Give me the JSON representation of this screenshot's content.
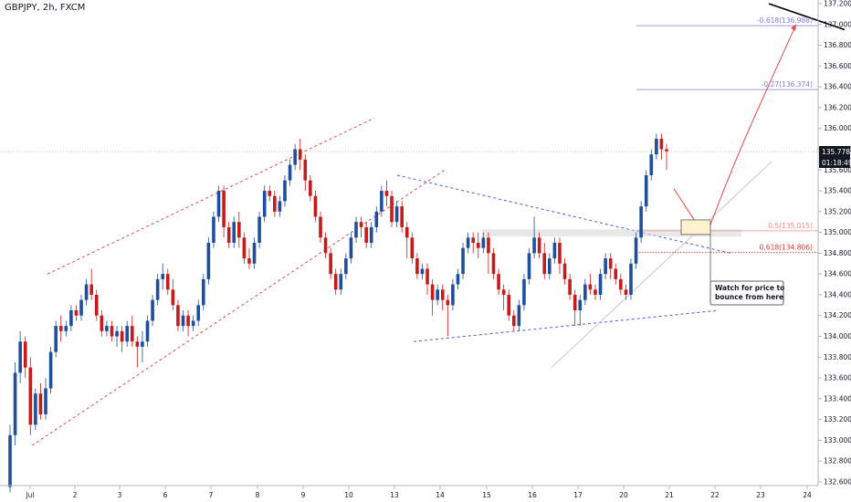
{
  "header": {
    "title": "GBPJPY, 2h, FXCM"
  },
  "chart_data": {
    "type": "candlestick",
    "title": "GBPJPY, 2h, FXCM",
    "ylim": [
      132.6,
      137.2
    ],
    "y_ticks": [
      "137.200",
      "137.000",
      "136.800",
      "136.600",
      "136.400",
      "136.200",
      "136.000",
      "135.800",
      "135.600",
      "135.400",
      "135.200",
      "135.000",
      "134.800",
      "134.600",
      "134.400",
      "134.200",
      "134.000",
      "133.800",
      "133.600",
      "133.400",
      "133.200",
      "133.000",
      "132.800",
      "132.600"
    ],
    "x_ticks": [
      "Jul",
      "2",
      "3",
      "6",
      "7",
      "8",
      "9",
      "10",
      "13",
      "14",
      "15",
      "16",
      "17",
      "20",
      "21",
      "22",
      "23",
      "24"
    ],
    "last_price": "135.778",
    "countdown": "01:18:49",
    "fib_levels": [
      {
        "label": "-0.618(136.988)",
        "value": 136.988,
        "color": "#7e7ed8"
      },
      {
        "label": "-0.27(136.374)",
        "value": 136.374,
        "color": "#7e7ed8"
      },
      {
        "label": "0.5(135.015)",
        "value": 135.015,
        "color": "#f08a8a"
      },
      {
        "label": "0.618(134.806)",
        "value": 134.806,
        "color": "#d93a3a"
      }
    ],
    "annotation": "Watch for price to bounce from here",
    "colors": {
      "up": "#1f4e9c",
      "down": "#c51b1b",
      "channel": "#e04a4a",
      "triangle": "#4a5ae0"
    },
    "candles": [
      [
        132.55,
        133.05,
        132.5,
        133.15
      ],
      [
        133.05,
        133.65,
        132.95,
        133.75
      ],
      [
        133.65,
        133.95,
        133.55,
        134.05
      ],
      [
        133.95,
        133.7,
        133.6,
        134.0
      ],
      [
        133.7,
        133.15,
        133.05,
        133.8
      ],
      [
        133.15,
        133.45,
        133.1,
        133.5
      ],
      [
        133.45,
        133.25,
        133.2,
        133.55
      ],
      [
        133.25,
        133.5,
        133.2,
        133.6
      ],
      [
        133.5,
        133.85,
        133.45,
        133.9
      ],
      [
        133.85,
        134.1,
        133.8,
        134.15
      ],
      [
        134.1,
        134.05,
        133.95,
        134.2
      ],
      [
        134.05,
        134.1,
        134.0,
        134.15
      ],
      [
        134.1,
        134.25,
        134.05,
        134.3
      ],
      [
        134.25,
        134.2,
        134.15,
        134.3
      ],
      [
        134.2,
        134.35,
        134.15,
        134.4
      ],
      [
        134.35,
        134.5,
        134.3,
        134.55
      ],
      [
        134.5,
        134.4,
        134.35,
        134.65
      ],
      [
        134.4,
        134.2,
        134.15,
        134.45
      ],
      [
        134.2,
        134.05,
        134.0,
        134.25
      ],
      [
        134.05,
        134.1,
        134.0,
        134.15
      ],
      [
        134.1,
        134.0,
        133.95,
        134.15
      ],
      [
        134.0,
        134.05,
        133.9,
        134.1
      ],
      [
        134.05,
        133.95,
        133.85,
        134.1
      ],
      [
        133.95,
        134.1,
        133.9,
        134.15
      ],
      [
        134.1,
        133.95,
        133.9,
        134.2
      ],
      [
        133.95,
        133.9,
        133.7,
        134.0
      ],
      [
        133.9,
        133.95,
        133.75,
        134.05
      ],
      [
        133.95,
        134.15,
        133.9,
        134.2
      ],
      [
        134.15,
        134.35,
        134.1,
        134.4
      ],
      [
        134.35,
        134.55,
        134.3,
        134.6
      ],
      [
        134.55,
        134.6,
        134.45,
        134.7
      ],
      [
        134.6,
        134.45,
        134.4,
        134.65
      ],
      [
        134.45,
        134.3,
        134.25,
        134.55
      ],
      [
        134.3,
        134.1,
        134.05,
        134.35
      ],
      [
        134.1,
        134.2,
        134.05,
        134.25
      ],
      [
        134.2,
        134.1,
        134.0,
        134.25
      ],
      [
        134.1,
        134.15,
        134.05,
        134.2
      ],
      [
        134.15,
        134.3,
        134.1,
        134.35
      ],
      [
        134.3,
        134.55,
        134.25,
        134.6
      ],
      [
        134.55,
        134.9,
        134.5,
        134.95
      ],
      [
        134.9,
        135.15,
        134.85,
        135.2
      ],
      [
        135.15,
        135.4,
        135.1,
        135.45
      ],
      [
        135.4,
        135.05,
        134.95,
        135.45
      ],
      [
        135.05,
        134.9,
        134.85,
        135.1
      ],
      [
        134.9,
        135.1,
        134.85,
        135.15
      ],
      [
        135.1,
        134.95,
        134.85,
        135.2
      ],
      [
        134.95,
        134.75,
        134.7,
        135.0
      ],
      [
        134.75,
        134.7,
        134.65,
        134.85
      ],
      [
        134.7,
        134.9,
        134.65,
        134.95
      ],
      [
        134.9,
        135.15,
        134.85,
        135.2
      ],
      [
        135.15,
        135.4,
        135.1,
        135.45
      ],
      [
        135.4,
        135.35,
        135.3,
        135.45
      ],
      [
        135.35,
        135.2,
        135.15,
        135.4
      ],
      [
        135.2,
        135.3,
        135.15,
        135.35
      ],
      [
        135.3,
        135.5,
        135.25,
        135.55
      ],
      [
        135.5,
        135.65,
        135.45,
        135.7
      ],
      [
        135.65,
        135.8,
        135.6,
        135.85
      ],
      [
        135.8,
        135.7,
        135.6,
        135.9
      ],
      [
        135.7,
        135.5,
        135.4,
        135.75
      ],
      [
        135.5,
        135.35,
        135.3,
        135.55
      ],
      [
        135.35,
        135.15,
        135.1,
        135.4
      ],
      [
        135.15,
        134.95,
        134.9,
        135.2
      ],
      [
        134.95,
        134.8,
        134.75,
        135.0
      ],
      [
        134.8,
        134.6,
        134.55,
        134.85
      ],
      [
        134.6,
        134.45,
        134.4,
        134.65
      ],
      [
        134.45,
        134.6,
        134.4,
        134.65
      ],
      [
        134.6,
        134.75,
        134.55,
        134.8
      ],
      [
        134.75,
        134.95,
        134.7,
        135.0
      ],
      [
        134.95,
        135.1,
        134.9,
        135.15
      ],
      [
        135.1,
        135.05,
        134.95,
        135.15
      ],
      [
        135.05,
        134.9,
        134.85,
        135.1
      ],
      [
        134.9,
        135.05,
        134.85,
        135.1
      ],
      [
        135.05,
        135.2,
        135.0,
        135.25
      ],
      [
        135.2,
        135.4,
        135.15,
        135.45
      ],
      [
        135.4,
        135.35,
        135.25,
        135.5
      ],
      [
        135.35,
        135.1,
        135.05,
        135.4
      ],
      [
        135.1,
        135.25,
        135.05,
        135.3
      ],
      [
        135.25,
        135.05,
        135.0,
        135.3
      ],
      [
        135.05,
        134.95,
        134.75,
        135.1
      ],
      [
        134.95,
        134.75,
        134.7,
        135.0
      ],
      [
        134.75,
        134.6,
        134.55,
        134.8
      ],
      [
        134.6,
        134.65,
        134.55,
        134.7
      ],
      [
        134.65,
        134.5,
        134.4,
        134.7
      ],
      [
        134.5,
        134.35,
        134.2,
        134.55
      ],
      [
        134.35,
        134.45,
        134.3,
        134.5
      ],
      [
        134.45,
        134.35,
        134.25,
        134.5
      ],
      [
        134.35,
        134.3,
        134.0,
        134.4
      ],
      [
        134.3,
        134.5,
        134.25,
        134.55
      ],
      [
        134.5,
        134.6,
        134.45,
        134.65
      ],
      [
        134.6,
        134.85,
        134.55,
        134.9
      ],
      [
        134.85,
        134.95,
        134.8,
        135.0
      ],
      [
        134.95,
        134.9,
        134.8,
        135.0
      ],
      [
        134.9,
        134.85,
        134.75,
        135.0
      ],
      [
        134.85,
        134.95,
        134.8,
        135.0
      ],
      [
        134.95,
        134.8,
        134.6,
        135.0
      ],
      [
        134.8,
        134.6,
        134.55,
        134.85
      ],
      [
        134.6,
        134.45,
        134.4,
        134.65
      ],
      [
        134.45,
        134.4,
        134.25,
        134.5
      ],
      [
        134.4,
        134.2,
        134.15,
        134.45
      ],
      [
        134.2,
        134.1,
        134.05,
        134.25
      ],
      [
        134.1,
        134.3,
        134.05,
        134.35
      ],
      [
        134.3,
        134.55,
        134.25,
        134.6
      ],
      [
        134.55,
        134.8,
        134.5,
        134.85
      ],
      [
        134.8,
        134.95,
        134.75,
        135.15
      ],
      [
        134.95,
        134.8,
        134.75,
        135.0
      ],
      [
        134.8,
        134.6,
        134.55,
        134.9
      ],
      [
        134.6,
        134.75,
        134.55,
        134.8
      ],
      [
        134.75,
        134.9,
        134.7,
        134.95
      ],
      [
        134.9,
        134.7,
        134.6,
        134.95
      ],
      [
        134.7,
        134.55,
        134.5,
        134.75
      ],
      [
        134.55,
        134.4,
        134.35,
        134.6
      ],
      [
        134.4,
        134.25,
        134.1,
        134.45
      ],
      [
        134.25,
        134.35,
        134.1,
        134.4
      ],
      [
        134.35,
        134.5,
        134.3,
        134.55
      ],
      [
        134.5,
        134.45,
        134.4,
        134.6
      ],
      [
        134.45,
        134.4,
        134.35,
        134.5
      ],
      [
        134.4,
        134.6,
        134.35,
        134.65
      ],
      [
        134.6,
        134.75,
        134.55,
        134.8
      ],
      [
        134.75,
        134.65,
        134.55,
        134.8
      ],
      [
        134.65,
        134.55,
        134.5,
        134.7
      ],
      [
        134.55,
        134.45,
        134.4,
        134.6
      ],
      [
        134.45,
        134.4,
        134.35,
        134.5
      ],
      [
        134.4,
        134.7,
        134.35,
        134.75
      ],
      [
        134.7,
        134.95,
        134.65,
        135.0
      ],
      [
        134.95,
        135.25,
        134.9,
        135.3
      ],
      [
        135.25,
        135.55,
        135.2,
        135.6
      ],
      [
        135.55,
        135.75,
        135.5,
        135.8
      ],
      [
        135.75,
        135.9,
        135.7,
        135.95
      ],
      [
        135.9,
        135.8,
        135.7,
        135.95
      ],
      [
        135.8,
        135.78,
        135.6,
        135.85
      ]
    ]
  }
}
